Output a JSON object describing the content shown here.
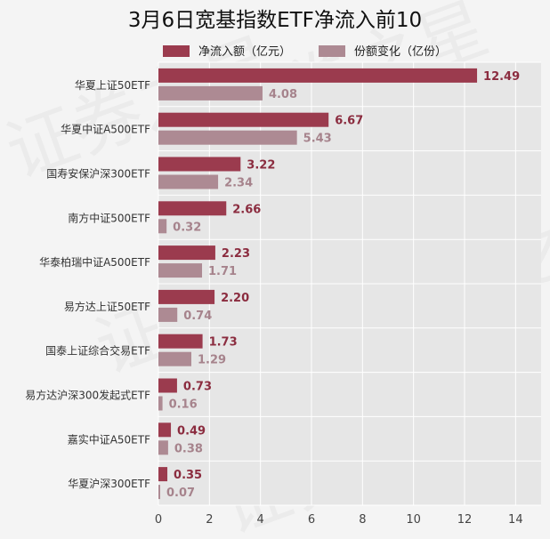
{
  "chart_data": {
    "type": "bar",
    "orientation": "horizontal",
    "title": "3月6日宽基指数ETF净流入前10",
    "categories": [
      "华夏上证50ETF",
      "华夏中证A500ETF",
      "国寿安保沪深300ETF",
      "南方中证500ETF",
      "华泰柏瑞中证A500ETF",
      "易方达上证50ETF",
      "国泰上证综合交易ETF",
      "易方达沪深300发起式ETF",
      "嘉实中证A50ETF",
      "华夏沪深300ETF"
    ],
    "series": [
      {
        "name": "净流入额（亿元）",
        "color": "#9b3b4e",
        "label_color": "#8b2c3f",
        "values": [
          12.49,
          6.67,
          3.22,
          2.66,
          2.23,
          2.2,
          1.73,
          0.73,
          0.49,
          0.35
        ],
        "labels": [
          "12.49",
          "6.67",
          "3.22",
          "2.66",
          "2.23",
          "2.20",
          "1.73",
          "0.73",
          "0.49",
          "0.35"
        ]
      },
      {
        "name": "份额变化（亿份）",
        "color": "#ad8a93",
        "label_color": "#a6838c",
        "values": [
          4.08,
          5.43,
          2.34,
          0.32,
          1.71,
          0.74,
          1.29,
          0.16,
          0.38,
          0.07
        ],
        "labels": [
          "4.08",
          "5.43",
          "2.34",
          "0.32",
          "1.71",
          "0.74",
          "1.29",
          "0.16",
          "0.38",
          "0.07"
        ]
      }
    ],
    "x_ticks": [
      0,
      2,
      4,
      6,
      8,
      10,
      12,
      14
    ],
    "xlim": [
      0,
      15
    ],
    "grid": true,
    "legend_position": "top",
    "watermark": "证券之星"
  }
}
